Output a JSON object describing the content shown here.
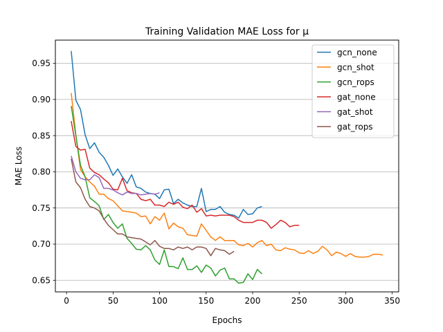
{
  "chart_data": {
    "type": "line",
    "title": "Training Validation MAE Loss for μ",
    "xlabel": "Epochs",
    "ylabel": "MAE Loss",
    "xlim": [
      -12,
      357
    ],
    "ylim": [
      0.634,
      0.982
    ],
    "xticks": [
      0,
      50,
      100,
      150,
      200,
      250,
      300,
      350
    ],
    "yticks": [
      0.65,
      0.7,
      0.75,
      0.8,
      0.85,
      0.9,
      0.95
    ],
    "ytick_labels": [
      "0.65",
      "0.70",
      "0.75",
      "0.80",
      "0.85",
      "0.90",
      "0.95"
    ],
    "grid": "horizontal",
    "legend": "top-right",
    "series": [
      {
        "name": "gcn_none",
        "color": "#1f77b4",
        "x": [
          5,
          10,
          15,
          20,
          25,
          30,
          35,
          40,
          45,
          50,
          55,
          60,
          65,
          70,
          75,
          80,
          85,
          90,
          95,
          100,
          105,
          110,
          115,
          120,
          125,
          130,
          135,
          140,
          145,
          150,
          155,
          160,
          165,
          170,
          175,
          180,
          185,
          190,
          195,
          200,
          205,
          210
        ],
        "y": [
          0.967,
          0.899,
          0.886,
          0.851,
          0.832,
          0.84,
          0.827,
          0.82,
          0.809,
          0.795,
          0.804,
          0.793,
          0.784,
          0.796,
          0.779,
          0.777,
          0.772,
          0.77,
          0.769,
          0.763,
          0.775,
          0.776,
          0.756,
          0.762,
          0.757,
          0.754,
          0.752,
          0.752,
          0.777,
          0.745,
          0.748,
          0.748,
          0.752,
          0.744,
          0.741,
          0.74,
          0.736,
          0.748,
          0.741,
          0.742,
          0.75,
          0.752
        ]
      },
      {
        "name": "gcn_shot",
        "color": "#ff7f0e",
        "x": [
          5,
          10,
          15,
          20,
          25,
          30,
          35,
          40,
          45,
          50,
          55,
          60,
          65,
          70,
          75,
          80,
          85,
          90,
          95,
          100,
          105,
          110,
          115,
          120,
          125,
          130,
          135,
          140,
          145,
          150,
          155,
          160,
          165,
          170,
          175,
          180,
          185,
          190,
          195,
          200,
          205,
          210,
          215,
          220,
          225,
          230,
          235,
          240,
          245,
          250,
          255,
          260,
          265,
          270,
          275,
          280,
          285,
          290,
          295,
          300,
          305,
          310,
          315,
          320,
          325,
          330,
          335,
          340
        ],
        "y": [
          0.909,
          0.851,
          0.803,
          0.793,
          0.786,
          0.78,
          0.769,
          0.769,
          0.763,
          0.76,
          0.753,
          0.746,
          0.745,
          0.744,
          0.743,
          0.738,
          0.739,
          0.728,
          0.738,
          0.733,
          0.743,
          0.721,
          0.729,
          0.724,
          0.722,
          0.713,
          0.712,
          0.711,
          0.728,
          0.719,
          0.71,
          0.705,
          0.71,
          0.705,
          0.705,
          0.705,
          0.699,
          0.698,
          0.701,
          0.696,
          0.702,
          0.705,
          0.698,
          0.7,
          0.692,
          0.691,
          0.695,
          0.693,
          0.692,
          0.688,
          0.687,
          0.691,
          0.687,
          0.69,
          0.697,
          0.692,
          0.684,
          0.689,
          0.687,
          0.683,
          0.687,
          0.683,
          0.682,
          0.682,
          0.683,
          0.686,
          0.686,
          0.685
        ]
      },
      {
        "name": "gcn_rops",
        "color": "#2ca02c",
        "x": [
          5,
          10,
          15,
          20,
          25,
          30,
          35,
          40,
          45,
          50,
          55,
          60,
          65,
          70,
          75,
          80,
          85,
          90,
          95,
          100,
          105,
          110,
          115,
          120,
          125,
          130,
          135,
          140,
          145,
          150,
          155,
          160,
          165,
          170,
          175,
          180,
          185,
          190,
          195,
          200,
          205,
          210
        ],
        "y": [
          0.891,
          0.85,
          0.809,
          0.793,
          0.764,
          0.759,
          0.753,
          0.734,
          0.741,
          0.73,
          0.722,
          0.728,
          0.708,
          0.701,
          0.693,
          0.692,
          0.698,
          0.692,
          0.678,
          0.672,
          0.692,
          0.669,
          0.669,
          0.666,
          0.681,
          0.665,
          0.665,
          0.67,
          0.661,
          0.671,
          0.667,
          0.656,
          0.664,
          0.667,
          0.652,
          0.652,
          0.646,
          0.647,
          0.659,
          0.651,
          0.665,
          0.659
        ]
      },
      {
        "name": "gat_none",
        "color": "#d62728",
        "x": [
          5,
          10,
          15,
          20,
          25,
          30,
          35,
          40,
          45,
          50,
          55,
          60,
          65,
          70,
          75,
          80,
          85,
          90,
          95,
          100,
          105,
          110,
          115,
          120,
          125,
          130,
          135,
          140,
          145,
          150,
          155,
          160,
          165,
          170,
          175,
          180,
          185,
          190,
          195,
          200,
          205,
          210,
          215,
          220,
          225,
          230,
          235,
          240,
          245,
          250
        ],
        "y": [
          0.87,
          0.835,
          0.83,
          0.831,
          0.805,
          0.799,
          0.796,
          0.79,
          0.785,
          0.776,
          0.775,
          0.791,
          0.774,
          0.771,
          0.77,
          0.762,
          0.76,
          0.762,
          0.754,
          0.754,
          0.752,
          0.758,
          0.755,
          0.758,
          0.751,
          0.749,
          0.754,
          0.744,
          0.749,
          0.739,
          0.74,
          0.739,
          0.74,
          0.74,
          0.74,
          0.738,
          0.733,
          0.73,
          0.73,
          0.73,
          0.733,
          0.733,
          0.73,
          0.722,
          0.727,
          0.733,
          0.73,
          0.724,
          0.726,
          0.726
        ]
      },
      {
        "name": "gat_shot",
        "color": "#9467bd",
        "x": [
          5,
          10,
          15,
          20,
          25,
          30,
          35,
          40,
          45,
          50,
          55,
          60,
          65,
          70,
          75,
          80,
          85,
          90,
          95,
          100
        ],
        "y": [
          0.822,
          0.8,
          0.791,
          0.789,
          0.789,
          0.796,
          0.792,
          0.777,
          0.777,
          0.775,
          0.771,
          0.768,
          0.772,
          0.77,
          0.77,
          0.768,
          0.769,
          0.77,
          0.769,
          0.771
        ]
      },
      {
        "name": "gat_rops",
        "color": "#8c564b",
        "x": [
          5,
          10,
          15,
          20,
          25,
          30,
          35,
          40,
          45,
          50,
          55,
          60,
          65,
          70,
          75,
          80,
          85,
          90,
          95,
          100,
          105,
          110,
          115,
          120,
          125,
          130,
          135,
          140,
          145,
          150,
          155,
          160,
          165,
          170,
          175,
          180
        ],
        "y": [
          0.818,
          0.786,
          0.778,
          0.762,
          0.752,
          0.75,
          0.746,
          0.735,
          0.726,
          0.72,
          0.714,
          0.714,
          0.71,
          0.709,
          0.708,
          0.707,
          0.703,
          0.699,
          0.705,
          0.697,
          0.694,
          0.694,
          0.692,
          0.696,
          0.694,
          0.696,
          0.692,
          0.696,
          0.696,
          0.694,
          0.684,
          0.694,
          0.692,
          0.691,
          0.686,
          0.69
        ]
      }
    ]
  }
}
